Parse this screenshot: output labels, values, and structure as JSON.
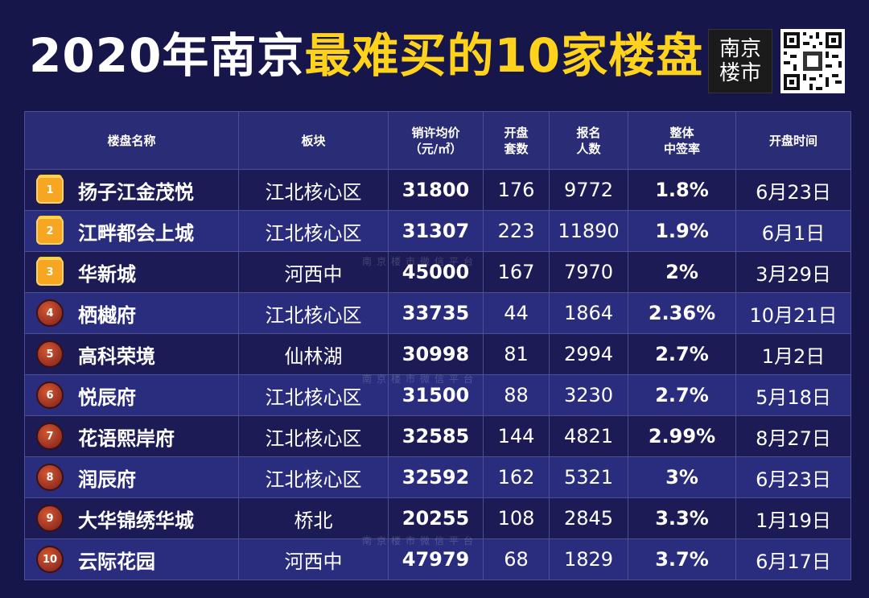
{
  "title": {
    "prefix": "2020年南京",
    "highlight": "最难买的10家楼盘"
  },
  "logo": {
    "line1": "南京",
    "line2": "楼市"
  },
  "watermark": "南京楼市微信平台",
  "colors": {
    "background": "#17164a",
    "highlight": "#ffd21c",
    "header": "#2a2c76"
  },
  "table": {
    "headers": {
      "name": "楼盘名称",
      "district": "板块",
      "price_l1": "销许均价",
      "price_l2": "（元/㎡）",
      "units_l1": "开盘",
      "units_l2": "套数",
      "applicants_l1": "报名",
      "applicants_l2": "人数",
      "rate_l1": "整体",
      "rate_l2": "中签率",
      "date": "开盘时间"
    },
    "rows": [
      {
        "rank": "1",
        "name": "扬子江金茂悦",
        "district": "江北核心区",
        "price": "31800",
        "units": "176",
        "applicants": "9772",
        "rate": "1.8%",
        "date": "6月23日"
      },
      {
        "rank": "2",
        "name": "江畔都会上城",
        "district": "江北核心区",
        "price": "31307",
        "units": "223",
        "applicants": "11890",
        "rate": "1.9%",
        "date": "6月1日"
      },
      {
        "rank": "3",
        "name": "华新城",
        "district": "河西中",
        "price": "45000",
        "units": "167",
        "applicants": "7970",
        "rate": "2%",
        "date": "3月29日"
      },
      {
        "rank": "4",
        "name": "栖樾府",
        "district": "江北核心区",
        "price": "33735",
        "units": "44",
        "applicants": "1864",
        "rate": "2.36%",
        "date": "10月21日"
      },
      {
        "rank": "5",
        "name": "高科荣境",
        "district": "仙林湖",
        "price": "30998",
        "units": "81",
        "applicants": "2994",
        "rate": "2.7%",
        "date": "1月2日"
      },
      {
        "rank": "6",
        "name": "悦辰府",
        "district": "江北核心区",
        "price": "31500",
        "units": "88",
        "applicants": "3230",
        "rate": "2.7%",
        "date": "5月18日"
      },
      {
        "rank": "7",
        "name": "花语熙岸府",
        "district": "江北核心区",
        "price": "32585",
        "units": "144",
        "applicants": "4821",
        "rate": "2.99%",
        "date": "8月27日"
      },
      {
        "rank": "8",
        "name": "润辰府",
        "district": "江北核心区",
        "price": "32592",
        "units": "162",
        "applicants": "5321",
        "rate": "3%",
        "date": "6月23日"
      },
      {
        "rank": "9",
        "name": "大华锦绣华城",
        "district": "桥北",
        "price": "20255",
        "units": "108",
        "applicants": "2845",
        "rate": "3.3%",
        "date": "1月19日"
      },
      {
        "rank": "10",
        "name": "云际花园",
        "district": "河西中",
        "price": "47979",
        "units": "68",
        "applicants": "1829",
        "rate": "3.7%",
        "date": "6月17日"
      }
    ]
  }
}
